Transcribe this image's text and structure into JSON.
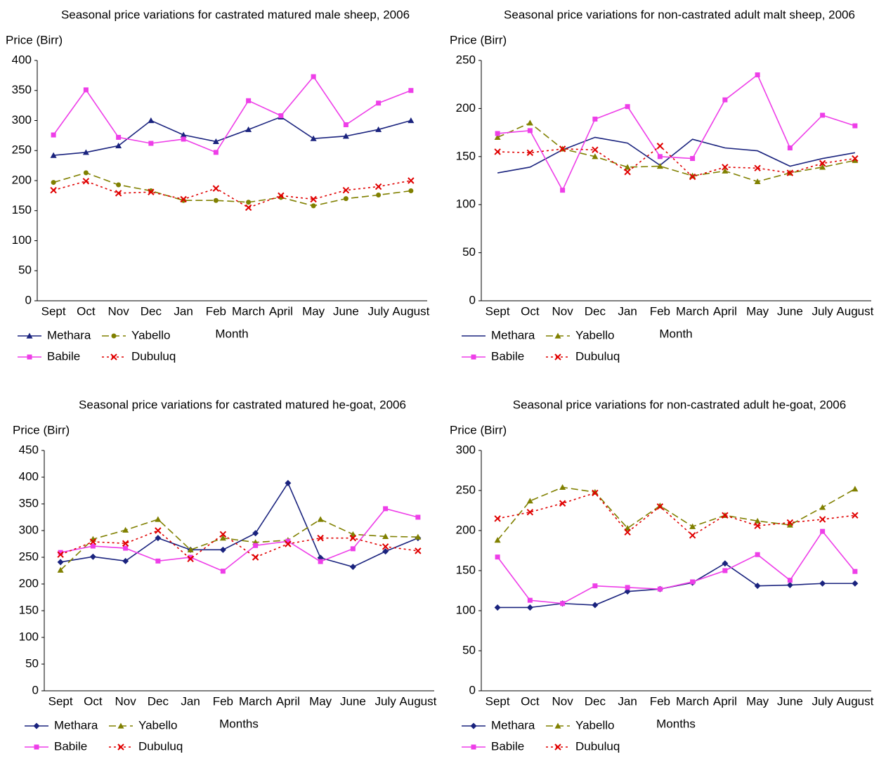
{
  "chart_data": [
    {
      "type": "line",
      "title": "Seasonal price variations for castrated matured male sheep, 2006",
      "y_label": "Price (Birr)",
      "x_label": "Month",
      "categories": [
        "Sept",
        "Oct",
        "Nov",
        "Dec",
        "Jan",
        "Feb",
        "March",
        "April",
        "May",
        "June",
        "July",
        "August"
      ],
      "ylim": [
        0,
        400
      ],
      "yticks": [
        0,
        50,
        100,
        150,
        200,
        250,
        300,
        350,
        400
      ],
      "series": [
        {
          "name": "Methara",
          "color": "#1a237e",
          "marker": "triangle",
          "dash": "solid",
          "values": [
            242,
            247,
            258,
            300,
            276,
            265,
            285,
            306,
            270,
            274,
            285,
            300
          ]
        },
        {
          "name": "Yabello",
          "color": "#808000",
          "marker": "circle",
          "dash": "dashed",
          "values": [
            197,
            213,
            193,
            183,
            167,
            167,
            164,
            172,
            158,
            170,
            176,
            183
          ]
        },
        {
          "name": "Babile",
          "color": "#ee3ee8",
          "marker": "square",
          "dash": "solid",
          "values": [
            276,
            351,
            272,
            262,
            269,
            247,
            333,
            308,
            373,
            293,
            329,
            350
          ]
        },
        {
          "name": "Dubuluq",
          "color": "#e00000",
          "marker": "x",
          "dash": "dotted",
          "values": [
            184,
            199,
            179,
            181,
            169,
            187,
            155,
            175,
            169,
            184,
            190,
            200
          ]
        }
      ]
    },
    {
      "type": "line",
      "title": "Seasonal price variations for non-castrated adult malt sheep, 2006",
      "y_label": "Price (Birr)",
      "x_label": "Month",
      "categories": [
        "Sept",
        "Oct",
        "Nov",
        "Dec",
        "Jan",
        "Feb",
        "March",
        "April",
        "May",
        "June",
        "July",
        "August"
      ],
      "ylim": [
        0,
        250
      ],
      "yticks": [
        0,
        50,
        100,
        150,
        200,
        250
      ],
      "series": [
        {
          "name": "Methara",
          "color": "#1a237e",
          "marker": "none",
          "dash": "solid",
          "values": [
            133,
            139,
            157,
            170,
            164,
            141,
            168,
            159,
            156,
            140,
            148,
            154
          ]
        },
        {
          "name": "Yabello",
          "color": "#808000",
          "marker": "triangle",
          "dash": "dashed",
          "values": [
            170,
            185,
            158,
            150,
            139,
            140,
            130,
            135,
            124,
            133,
            139,
            146
          ]
        },
        {
          "name": "Babile",
          "color": "#ee3ee8",
          "marker": "square",
          "dash": "solid",
          "values": [
            174,
            177,
            115,
            189,
            202,
            150,
            148,
            209,
            235,
            159,
            193,
            182
          ]
        },
        {
          "name": "Dubuluq",
          "color": "#e00000",
          "marker": "x",
          "dash": "dotted",
          "values": [
            155,
            154,
            158,
            157,
            134,
            161,
            129,
            139,
            138,
            133,
            143,
            148
          ]
        }
      ]
    },
    {
      "type": "line",
      "title": "Seasonal price variations for castrated matured he-goat, 2006",
      "y_label": "Price (Birr)",
      "x_label": "Months",
      "categories": [
        "Sept",
        "Oct",
        "Nov",
        "Dec",
        "Jan",
        "Feb",
        "March",
        "April",
        "May",
        "June",
        "July",
        "August"
      ],
      "ylim": [
        0,
        450
      ],
      "yticks": [
        0,
        50,
        100,
        150,
        200,
        250,
        300,
        350,
        400,
        450
      ],
      "series": [
        {
          "name": "Methara",
          "color": "#1a237e",
          "marker": "diamond",
          "dash": "solid",
          "values": [
            241,
            251,
            243,
            286,
            264,
            264,
            295,
            389,
            249,
            232,
            261,
            286
          ]
        },
        {
          "name": "Yabello",
          "color": "#808000",
          "marker": "triangle",
          "dash": "dashed",
          "values": [
            226,
            284,
            301,
            321,
            264,
            286,
            278,
            282,
            321,
            293,
            289,
            288
          ]
        },
        {
          "name": "Babile",
          "color": "#ee3ee8",
          "marker": "square",
          "dash": "solid",
          "values": [
            259,
            271,
            267,
            243,
            250,
            224,
            272,
            280,
            242,
            266,
            341,
            325
          ]
        },
        {
          "name": "Dubuluq",
          "color": "#e00000",
          "marker": "x",
          "dash": "dotted",
          "values": [
            255,
            279,
            276,
            300,
            247,
            293,
            250,
            275,
            286,
            286,
            270,
            262
          ]
        }
      ]
    },
    {
      "type": "line",
      "title": "Seasonal price variations for non-castrated adult he-goat, 2006",
      "y_label": "Price (Birr)",
      "x_label": "Months",
      "categories": [
        "Sept",
        "Oct",
        "Nov",
        "Dec",
        "Jan",
        "Feb",
        "March",
        "April",
        "May",
        "June",
        "July",
        "August"
      ],
      "ylim": [
        0,
        300
      ],
      "yticks": [
        0,
        50,
        100,
        150,
        200,
        250,
        300
      ],
      "series": [
        {
          "name": "Methara",
          "color": "#1a237e",
          "marker": "diamond",
          "dash": "solid",
          "values": [
            104,
            104,
            109,
            107,
            124,
            127,
            135,
            159,
            131,
            132,
            134,
            134
          ]
        },
        {
          "name": "Yabello",
          "color": "#808000",
          "marker": "triangle",
          "dash": "dashed",
          "values": [
            188,
            237,
            254,
            248,
            203,
            231,
            205,
            219,
            212,
            207,
            229,
            252
          ]
        },
        {
          "name": "Babile",
          "color": "#ee3ee8",
          "marker": "square",
          "dash": "solid",
          "values": [
            167,
            113,
            109,
            131,
            129,
            127,
            136,
            150,
            170,
            138,
            199,
            149
          ]
        },
        {
          "name": "Dubuluq",
          "color": "#e00000",
          "marker": "x",
          "dash": "dotted",
          "values": [
            215,
            223,
            234,
            247,
            198,
            230,
            194,
            219,
            206,
            210,
            214,
            219
          ]
        }
      ]
    }
  ]
}
